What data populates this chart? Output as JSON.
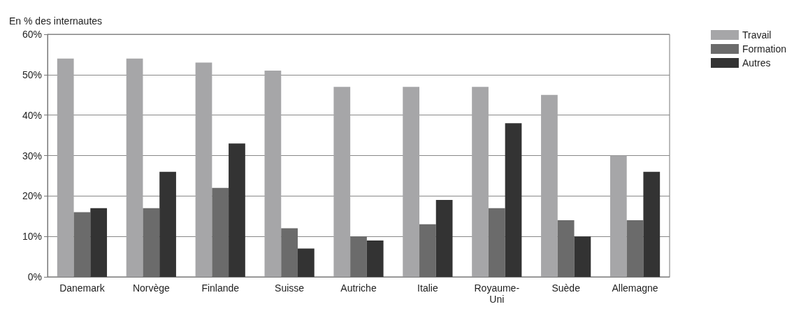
{
  "chart_data": {
    "type": "bar",
    "ylabel": "En % des internautes",
    "categories": [
      "Danemark",
      "Norvège",
      "Finlande",
      "Suisse",
      "Autriche",
      "Italie",
      "Royaume-Uni",
      "Suède",
      "Allemagne"
    ],
    "series": [
      {
        "name": "Travail",
        "color": "#a6a6a8",
        "values": [
          54,
          54,
          53,
          51,
          47,
          47,
          47,
          45,
          30
        ]
      },
      {
        "name": "Formation",
        "color": "#6b6b6b",
        "values": [
          16,
          17,
          22,
          12,
          10,
          13,
          17,
          14,
          14
        ]
      },
      {
        "name": "Autres",
        "color": "#333333",
        "values": [
          17,
          26,
          33,
          7,
          9,
          19,
          38,
          10,
          26
        ]
      }
    ],
    "ylim": [
      0,
      60
    ],
    "yticks": [
      {
        "value": 0,
        "label": "0%"
      },
      {
        "value": 10,
        "label": "10%"
      },
      {
        "value": 20,
        "label": "20%"
      },
      {
        "value": 30,
        "label": "30%"
      },
      {
        "value": 40,
        "label": "40%"
      },
      {
        "value": 50,
        "label": "50%"
      },
      {
        "value": 60,
        "label": "60%"
      }
    ],
    "grid": "y",
    "legend": "top right"
  }
}
